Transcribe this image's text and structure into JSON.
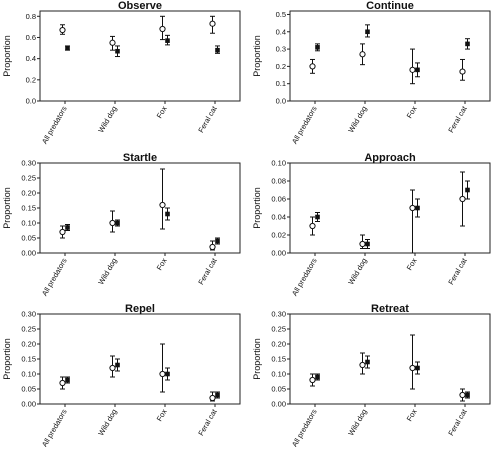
{
  "chart_data": [
    {
      "type": "scatter",
      "title": "Observe",
      "ylabel": "Proportion",
      "categories": [
        "All predators",
        "Wild dog",
        "Fox",
        "Feral cat"
      ],
      "yticks": [
        "0.0",
        "0.2",
        "0.4",
        "0.6",
        "0.8"
      ],
      "ylim": [
        0,
        0.85
      ],
      "series": [
        {
          "marker": "open-circle",
          "values": [
            0.67,
            0.55,
            0.68,
            0.73
          ],
          "err_low": [
            0.63,
            0.48,
            0.58,
            0.64
          ],
          "err_high": [
            0.72,
            0.61,
            0.8,
            0.8
          ]
        },
        {
          "marker": "filled-square",
          "values": [
            0.5,
            0.47,
            0.57,
            0.48
          ],
          "err_low": [
            0.48,
            0.42,
            0.53,
            0.45
          ],
          "err_high": [
            0.52,
            0.52,
            0.62,
            0.52
          ]
        }
      ]
    },
    {
      "type": "scatter",
      "title": "Continue",
      "ylabel": "Proportion",
      "categories": [
        "All predators",
        "Wild dog",
        "Fox",
        "Feral cat"
      ],
      "yticks": [
        "0.0",
        "0.1",
        "0.2",
        "0.3",
        "0.4",
        "0.5"
      ],
      "ylim": [
        0,
        0.52
      ],
      "series": [
        {
          "marker": "open-circle",
          "values": [
            0.2,
            0.27,
            0.18,
            0.17
          ],
          "err_low": [
            0.16,
            0.21,
            0.1,
            0.12
          ],
          "err_high": [
            0.24,
            0.33,
            0.3,
            0.24
          ]
        },
        {
          "marker": "filled-square",
          "values": [
            0.31,
            0.4,
            0.18,
            0.33
          ],
          "err_low": [
            0.29,
            0.37,
            0.14,
            0.3
          ],
          "err_high": [
            0.33,
            0.44,
            0.22,
            0.36
          ]
        }
      ]
    },
    {
      "type": "scatter",
      "title": "Startle",
      "ylabel": "Proportion",
      "categories": [
        "All predators",
        "Wild dog",
        "Fox",
        "Feral cat"
      ],
      "yticks": [
        "0.00",
        "0.05",
        "0.10",
        "0.15",
        "0.20",
        "0.25",
        "0.30"
      ],
      "ylim": [
        0,
        0.3
      ],
      "series": [
        {
          "marker": "open-circle",
          "values": [
            0.07,
            0.1,
            0.16,
            0.02
          ],
          "err_low": [
            0.05,
            0.07,
            0.08,
            0.01
          ],
          "err_high": [
            0.09,
            0.14,
            0.28,
            0.04
          ]
        },
        {
          "marker": "filled-square",
          "values": [
            0.085,
            0.1,
            0.13,
            0.04
          ],
          "err_low": [
            0.075,
            0.09,
            0.11,
            0.03
          ],
          "err_high": [
            0.095,
            0.11,
            0.15,
            0.05
          ]
        }
      ]
    },
    {
      "type": "scatter",
      "title": "Approach",
      "ylabel": "Proportion",
      "categories": [
        "All predators",
        "Wild dog",
        "Fox",
        "Feral cat"
      ],
      "yticks": [
        "0.00",
        "0.02",
        "0.04",
        "0.06",
        "0.08",
        "0.10"
      ],
      "ylim": [
        0,
        0.1
      ],
      "series": [
        {
          "marker": "open-circle",
          "values": [
            0.03,
            0.01,
            0.05,
            0.06
          ],
          "err_low": [
            0.02,
            0.005,
            0.0,
            0.03
          ],
          "err_high": [
            0.04,
            0.02,
            0.07,
            0.09
          ]
        },
        {
          "marker": "filled-square",
          "values": [
            0.04,
            0.01,
            0.05,
            0.07
          ],
          "err_low": [
            0.035,
            0.005,
            0.04,
            0.06
          ],
          "err_high": [
            0.045,
            0.015,
            0.06,
            0.08
          ]
        }
      ]
    },
    {
      "type": "scatter",
      "title": "Repel",
      "ylabel": "Proportion",
      "categories": [
        "All predators",
        "Wild dog",
        "Fox",
        "Feral cat"
      ],
      "yticks": [
        "0.00",
        "0.05",
        "0.10",
        "0.15",
        "0.20",
        "0.25",
        "0.30"
      ],
      "ylim": [
        0,
        0.3
      ],
      "series": [
        {
          "marker": "open-circle",
          "values": [
            0.07,
            0.12,
            0.1,
            0.02
          ],
          "err_low": [
            0.05,
            0.09,
            0.04,
            0.01
          ],
          "err_high": [
            0.09,
            0.16,
            0.2,
            0.04
          ]
        },
        {
          "marker": "filled-square",
          "values": [
            0.08,
            0.13,
            0.1,
            0.03
          ],
          "err_low": [
            0.07,
            0.11,
            0.08,
            0.02
          ],
          "err_high": [
            0.09,
            0.15,
            0.12,
            0.04
          ]
        }
      ]
    },
    {
      "type": "scatter",
      "title": "Retreat",
      "ylabel": "Proportion",
      "categories": [
        "All predators",
        "Wild dog",
        "Fox",
        "Feral cat"
      ],
      "yticks": [
        "0.00",
        "0.05",
        "0.10",
        "0.15",
        "0.20",
        "0.25",
        "0.30"
      ],
      "ylim": [
        0,
        0.3
      ],
      "series": [
        {
          "marker": "open-circle",
          "values": [
            0.08,
            0.13,
            0.12,
            0.03
          ],
          "err_low": [
            0.06,
            0.1,
            0.05,
            0.01
          ],
          "err_high": [
            0.1,
            0.17,
            0.23,
            0.05
          ]
        },
        {
          "marker": "filled-square",
          "values": [
            0.09,
            0.14,
            0.12,
            0.03
          ],
          "err_low": [
            0.08,
            0.12,
            0.1,
            0.02
          ],
          "err_high": [
            0.1,
            0.16,
            0.14,
            0.04
          ]
        }
      ]
    }
  ]
}
